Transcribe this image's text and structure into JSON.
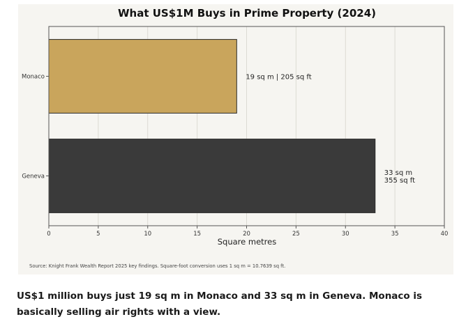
{
  "chart_data": {
    "type": "bar",
    "orientation": "horizontal",
    "title": "What US$1M Buys in Prime Property (2024)",
    "xlabel": "Square metres",
    "ylabel": "",
    "xlim": [
      0,
      40
    ],
    "xticks": [
      "0",
      "5",
      "10",
      "15",
      "20",
      "25",
      "30",
      "35",
      "40"
    ],
    "grid": "vertical",
    "categories": [
      "Monaco",
      "Geneva"
    ],
    "values": [
      19,
      33
    ],
    "colors": [
      "#c9a55c",
      "#3a3a3a"
    ],
    "data_labels": [
      [
        "19 sq m  |  205 sq ft"
      ],
      [
        "33 sq m",
        "355 sq ft"
      ]
    ],
    "source_note": "Source: Knight Frank Wealth Report 2025 key findings. Square-foot conversion uses 1 sq m = 10.7639 sq ft."
  },
  "caption": "US$1 million buys just 19 sq m in Monaco and 33 sq m in Geneva. Monaco is basically selling air rights with a view."
}
